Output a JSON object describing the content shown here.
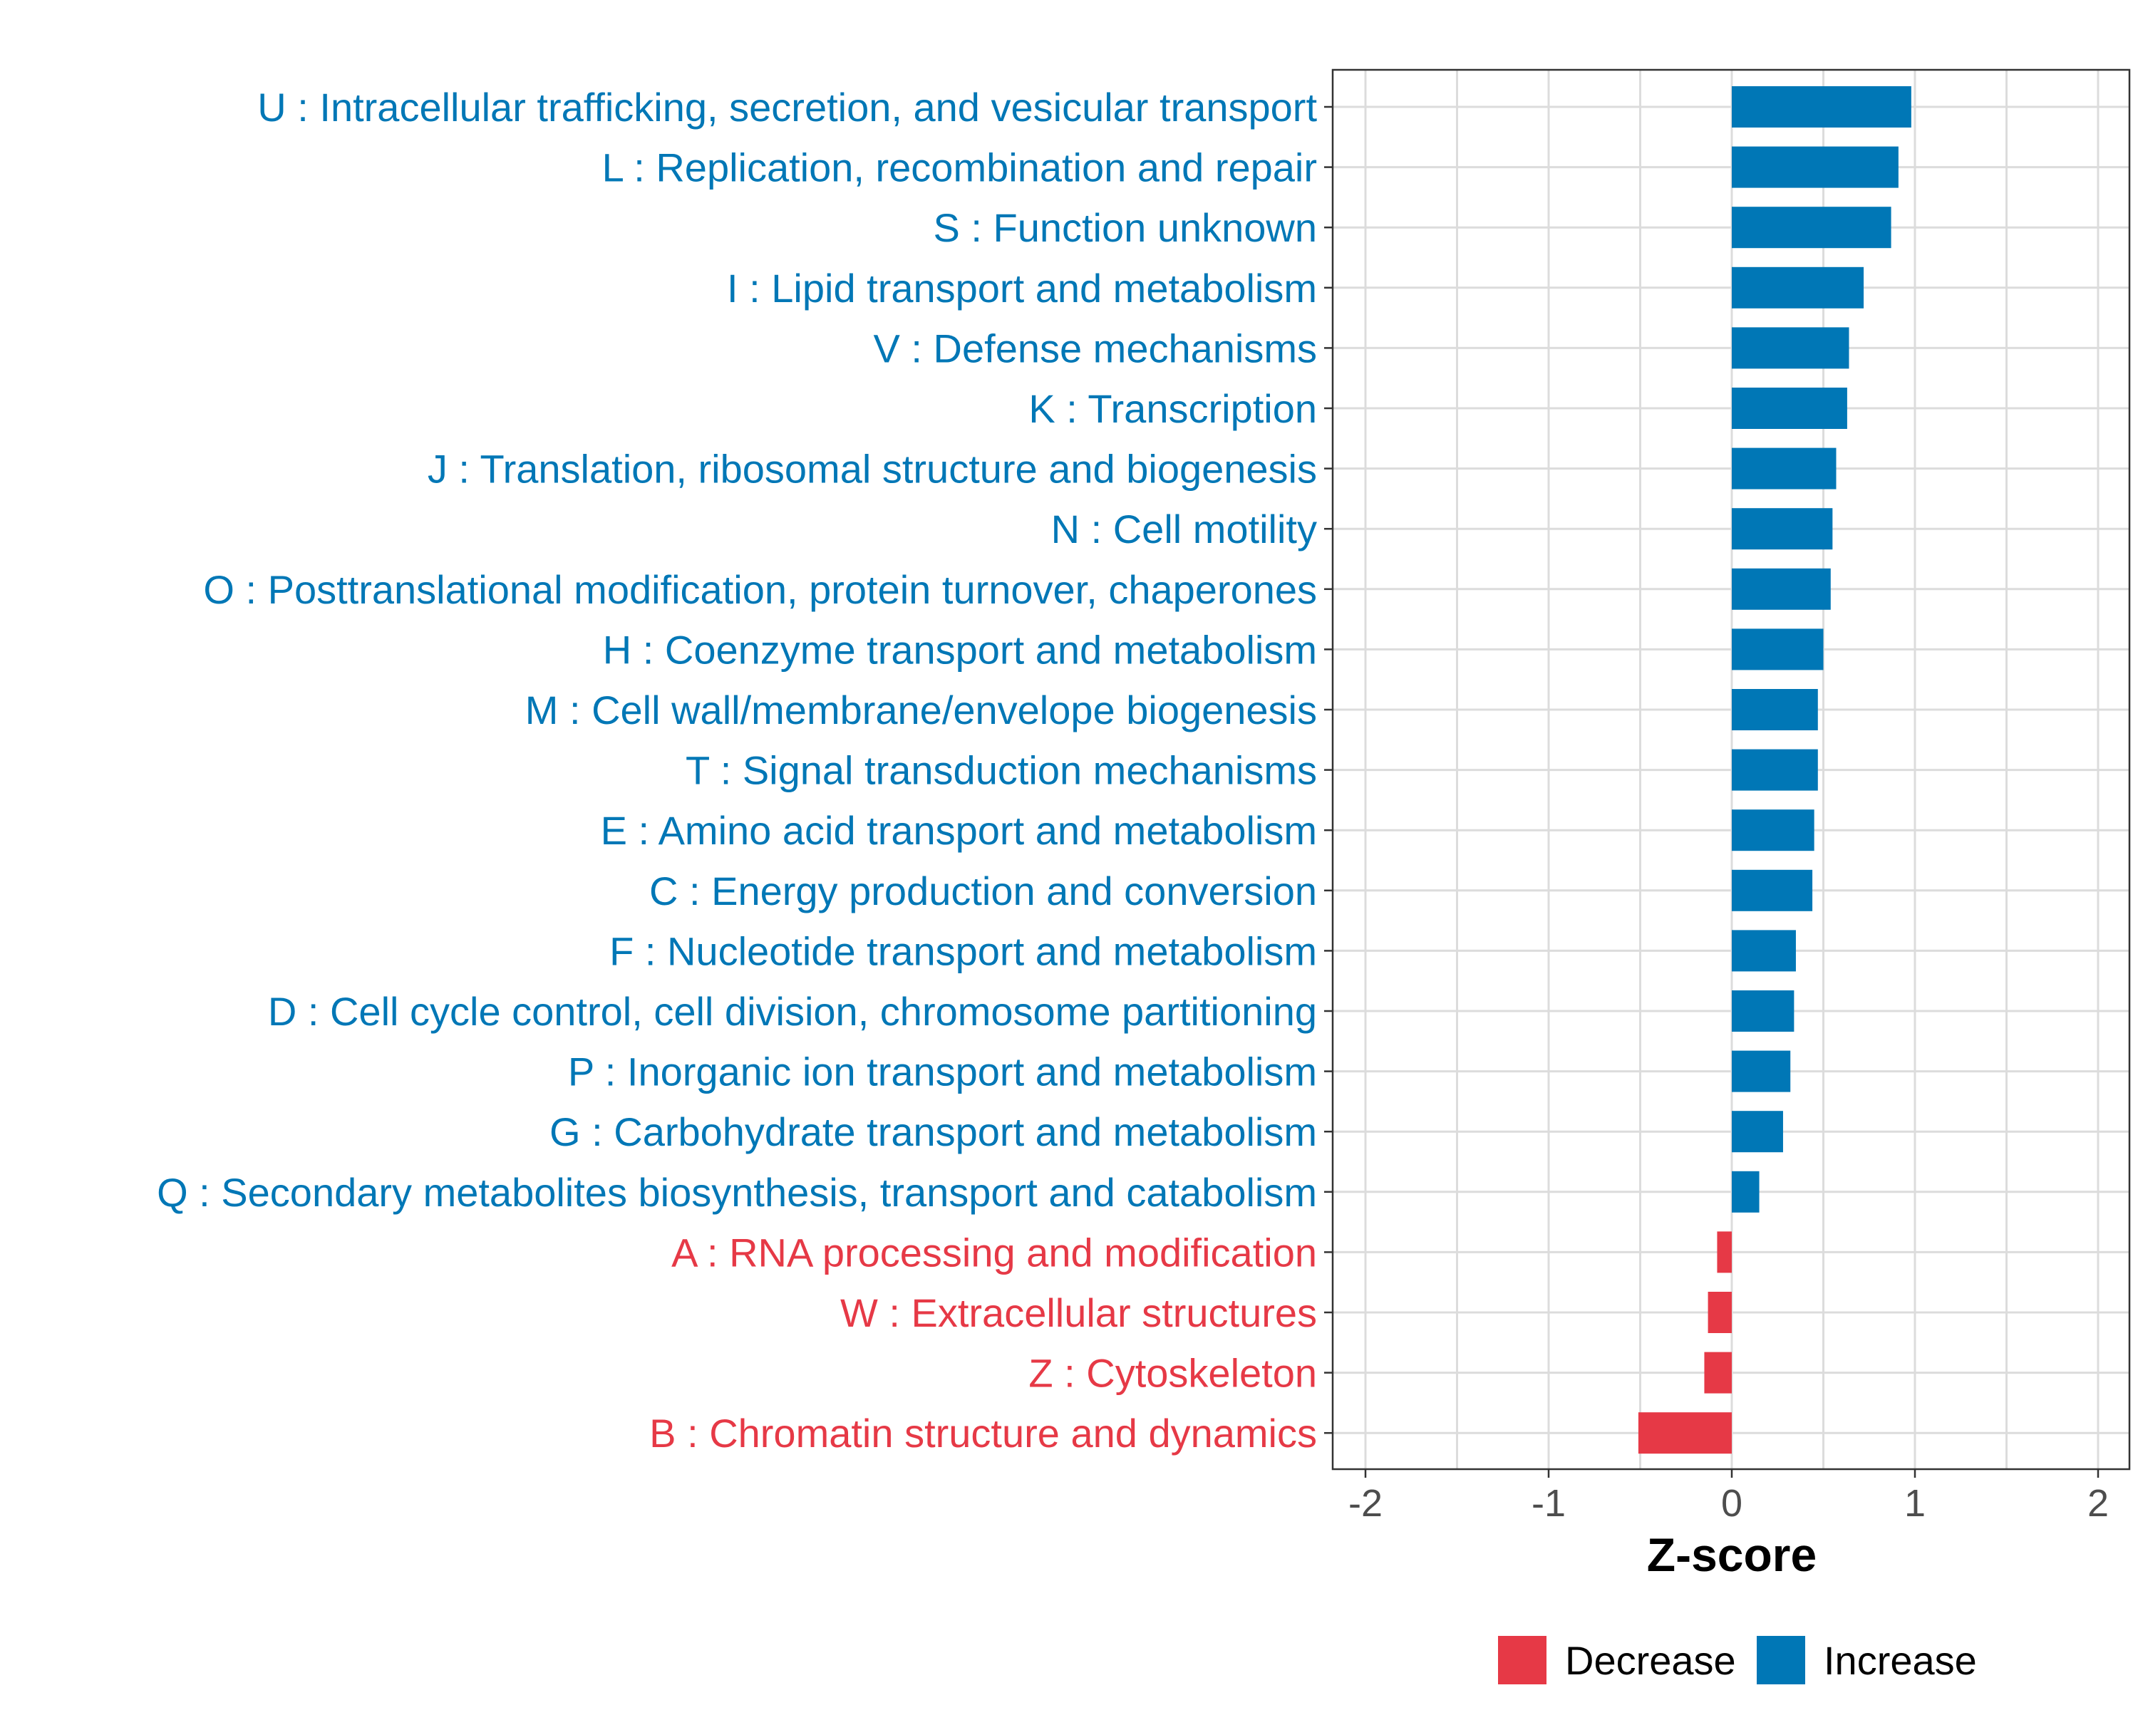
{
  "chart_data": {
    "type": "bar",
    "orientation": "horizontal",
    "title": "",
    "xlabel": "Z-score",
    "ylabel": "",
    "xlim": [
      -2.2,
      2.2
    ],
    "xticks": [
      -2,
      -1,
      0,
      1,
      2
    ],
    "xtick_labels": [
      "-2",
      "-1",
      "0",
      "1",
      "2"
    ],
    "grid": true,
    "legend_position": "bottom",
    "colors": {
      "Decrease": "#e63946",
      "Increase": "#0077b6"
    },
    "legend": [
      {
        "name": "Decrease",
        "color": "#e63946"
      },
      {
        "name": "Increase",
        "color": "#0077b6"
      }
    ],
    "categories": [
      "U : Intracellular trafficking, secretion, and vesicular transport",
      "L : Replication, recombination and repair",
      "S : Function unknown",
      "I : Lipid transport and metabolism",
      "V : Defense mechanisms",
      "K : Transcription",
      "J : Translation, ribosomal structure and biogenesis",
      "N : Cell motility",
      "O : Posttranslational modification, protein turnover, chaperones",
      "H : Coenzyme transport and metabolism",
      "M : Cell wall/membrane/envelope biogenesis",
      "T : Signal transduction mechanisms",
      "E : Amino acid transport and metabolism",
      "C : Energy production and conversion",
      "F : Nucleotide transport and metabolism",
      "D : Cell cycle control, cell division, chromosome partitioning",
      "P : Inorganic ion transport and metabolism",
      "G : Carbohydrate transport and metabolism",
      "Q : Secondary metabolites biosynthesis, transport and catabolism",
      "A : RNA processing and modification",
      "W : Extracellular structures",
      "Z : Cytoskeleton",
      "B : Chromatin structure and dynamics"
    ],
    "values": [
      0.98,
      0.91,
      0.87,
      0.72,
      0.64,
      0.63,
      0.57,
      0.55,
      0.54,
      0.5,
      0.47,
      0.47,
      0.45,
      0.44,
      0.35,
      0.34,
      0.32,
      0.28,
      0.15,
      -0.08,
      -0.13,
      -0.15,
      -0.51
    ],
    "groups": [
      "Increase",
      "Increase",
      "Increase",
      "Increase",
      "Increase",
      "Increase",
      "Increase",
      "Increase",
      "Increase",
      "Increase",
      "Increase",
      "Increase",
      "Increase",
      "Increase",
      "Increase",
      "Increase",
      "Increase",
      "Increase",
      "Increase",
      "Decrease",
      "Decrease",
      "Decrease",
      "Decrease"
    ]
  }
}
